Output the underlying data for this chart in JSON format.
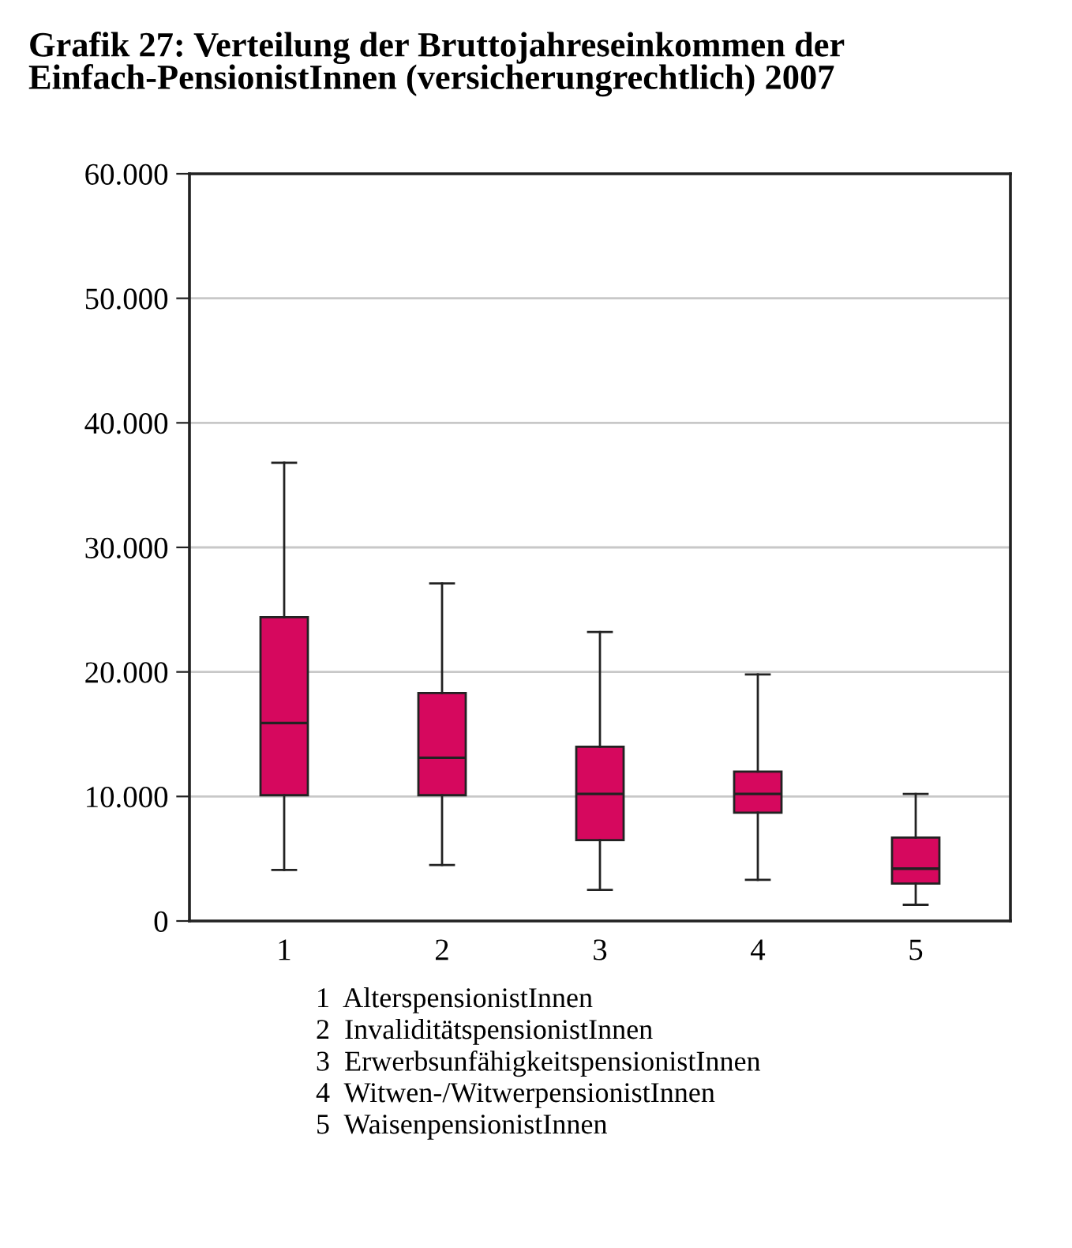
{
  "chart_data": {
    "type": "box",
    "title": "Grafik 27: Verteilung der Bruttojahreseinkommen der Einfach-PensionistInnen (versicherungrechtlich) 2007",
    "categories": [
      "1",
      "2",
      "3",
      "4",
      "5"
    ],
    "boxes": [
      {
        "low": 4100,
        "q1": 10100,
        "median": 15900,
        "q3": 24400,
        "high": 36800
      },
      {
        "low": 4500,
        "q1": 10100,
        "median": 13100,
        "q3": 18300,
        "high": 27100
      },
      {
        "low": 2500,
        "q1": 6500,
        "median": 10200,
        "q3": 14000,
        "high": 23200
      },
      {
        "low": 3300,
        "q1": 8700,
        "median": 10200,
        "q3": 12000,
        "high": 19800
      },
      {
        "low": 1300,
        "q1": 3000,
        "median": 4200,
        "q3": 6700,
        "high": 10200
      }
    ],
    "color": "#d6085e",
    "ylim": [
      0,
      60000
    ],
    "yticks": [
      0,
      {
        "value": 10000,
        "label": "10.000"
      },
      {
        "value": 20000,
        "label": "20.000"
      },
      {
        "value": 30000,
        "label": "30.000"
      },
      {
        "value": 40000,
        "label": "40.000"
      },
      {
        "value": 50000,
        "label": "50.000"
      },
      {
        "value": 60000,
        "label": "60.000"
      }
    ],
    "grid": "y",
    "annotations": [
      "1  AlterspensionistInnen",
      "2  InvaliditätspensionistInnen",
      "3  ErwerbsunfähigkeitspensionistInnen",
      "4  Witwen-/WitwerpensionistInnen",
      "5  WaisenpensionistInnen"
    ]
  }
}
